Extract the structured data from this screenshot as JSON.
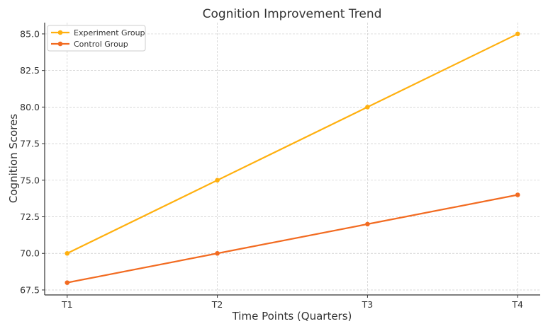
{
  "chart_data": {
    "type": "line",
    "title": "Cognition Improvement Trend",
    "xlabel": "Time Points (Quarters)",
    "ylabel": "Cognition Scores",
    "categories": [
      "T1",
      "T2",
      "T3",
      "T4"
    ],
    "ylim": [
      67.16,
      85.77
    ],
    "yticks": [
      67.5,
      70.0,
      72.5,
      75.0,
      77.5,
      80.0,
      82.5,
      85.0
    ],
    "ytick_labels": [
      "67.5",
      "70.0",
      "72.5",
      "75.0",
      "77.5",
      "80.0",
      "82.5",
      "85.0"
    ],
    "grid": true,
    "legend_position": "top-left",
    "series": [
      {
        "name": "Experiment Group",
        "values": [
          70,
          75,
          80,
          85
        ],
        "color": "#FFB00F",
        "marker": "circle"
      },
      {
        "name": "Control Group",
        "values": [
          68,
          70,
          72,
          74
        ],
        "color": "#F26B21",
        "marker": "circle"
      }
    ]
  }
}
